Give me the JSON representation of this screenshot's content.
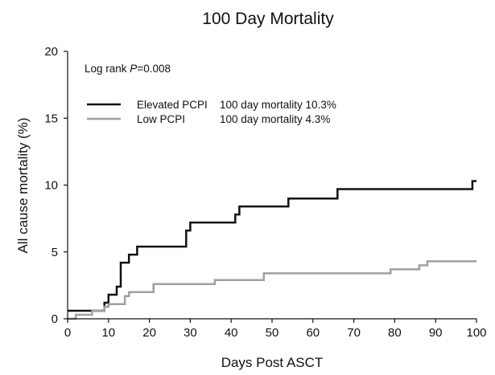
{
  "chart_data": {
    "type": "line",
    "title": "100 Day Mortality",
    "xlabel": "Days Post ASCT",
    "ylabel": "All cause mortality (%)",
    "xlim": [
      0,
      100
    ],
    "ylim": [
      0,
      20
    ],
    "xticks": [
      "0",
      "10",
      "20",
      "30",
      "40",
      "50",
      "60",
      "70",
      "80",
      "90",
      "100"
    ],
    "yticks": [
      "0",
      "5",
      "10",
      "15",
      "20"
    ],
    "grid": false,
    "legend_position": "top-left",
    "annotation": {
      "prefix": "Log rank ",
      "p_symbol": "P",
      "value": "=0.008"
    },
    "series": [
      {
        "name": "Elevated PCPI",
        "note": "100 day mortality 10.3%",
        "color": "#111111",
        "step": true,
        "x": [
          0,
          9,
          9,
          10,
          10,
          12,
          12,
          13,
          13,
          15,
          15,
          16,
          16,
          17,
          17,
          29,
          29,
          30,
          30,
          41,
          41,
          42,
          42,
          54,
          54,
          66,
          66,
          99,
          99,
          100
        ],
        "y": [
          0.6,
          0.6,
          1.2,
          1.2,
          1.8,
          1.8,
          2.4,
          2.4,
          4.2,
          4.2,
          4.8,
          4.8,
          4.8,
          4.8,
          5.4,
          5.4,
          6.6,
          6.6,
          7.2,
          7.2,
          7.8,
          7.8,
          8.4,
          8.4,
          9.0,
          9.0,
          9.7,
          9.7,
          10.3,
          10.3
        ]
      },
      {
        "name": "Low PCPI",
        "note": "100 day mortality 4.3%",
        "color": "#a0a0a0",
        "step": true,
        "x": [
          0,
          2,
          2,
          6,
          6,
          9,
          9,
          10,
          10,
          14,
          14,
          15,
          15,
          16,
          16,
          21,
          21,
          36,
          36,
          48,
          48,
          79,
          79,
          86,
          86,
          88,
          88,
          100
        ],
        "y": [
          0,
          0,
          0.3,
          0.3,
          0.6,
          0.6,
          0.9,
          0.9,
          1.1,
          1.1,
          1.7,
          1.7,
          2.0,
          2.0,
          2.0,
          2.0,
          2.6,
          2.6,
          2.9,
          2.9,
          3.4,
          3.4,
          3.7,
          3.7,
          4.0,
          4.0,
          4.3,
          4.3
        ]
      }
    ]
  }
}
